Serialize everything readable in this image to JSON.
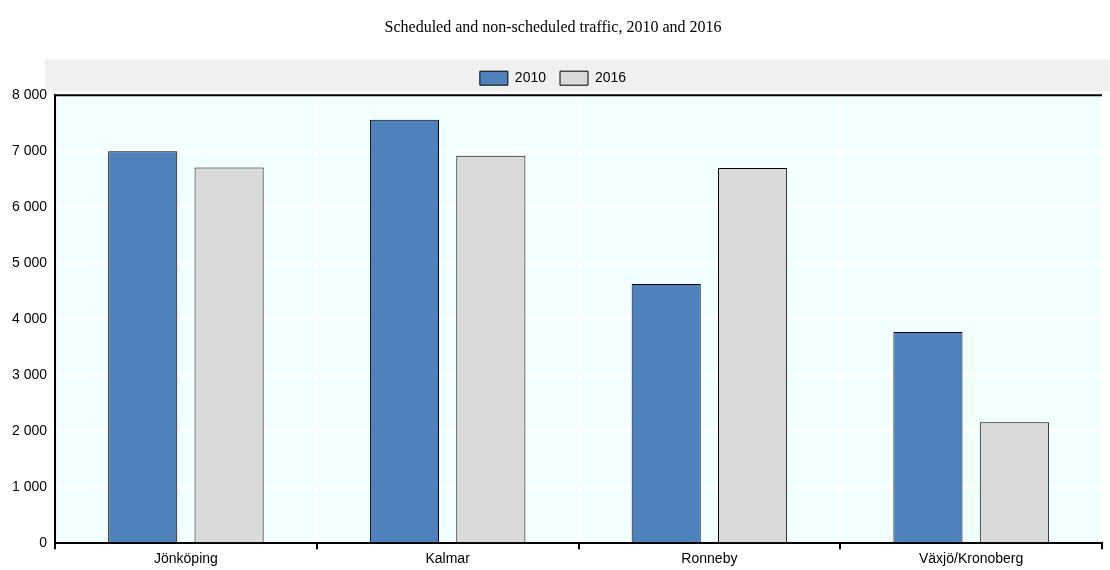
{
  "chart_data": {
    "type": "bar",
    "title": "Scheduled and non-scheduled traffic, 2010 and 2016",
    "categories": [
      "Jönköping",
      "Kalmar",
      "Ronneby",
      "Växjö/Kronoberg"
    ],
    "series": [
      {
        "name": "2010",
        "color": "#4f81bd",
        "values": [
          7000,
          7560,
          4630,
          3770
        ]
      },
      {
        "name": "2016",
        "color": "#dadada",
        "values": [
          6710,
          6920,
          6700,
          2160
        ]
      }
    ],
    "ylim": [
      0,
      8000
    ],
    "yticks": [
      0,
      1000,
      2000,
      3000,
      4000,
      5000,
      6000,
      7000,
      8000
    ],
    "grid": true,
    "legend": "top"
  }
}
